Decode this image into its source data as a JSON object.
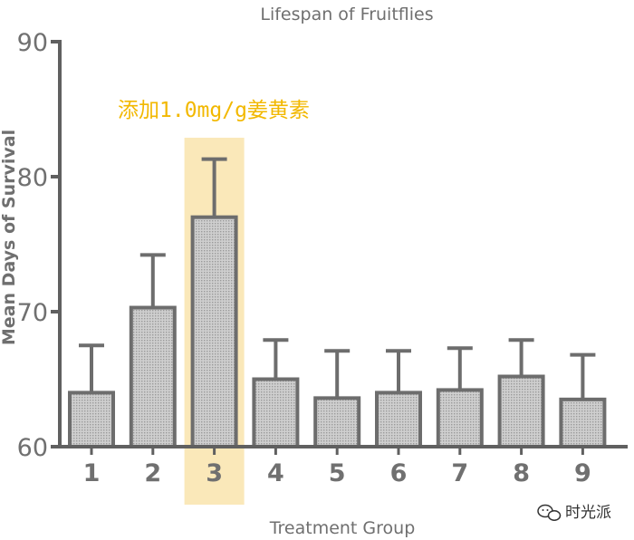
{
  "chart_data": {
    "type": "bar",
    "title": "Lifespan of Fruitflies",
    "xlabel": "Treatment Group",
    "ylabel": "Mean Days of Survival",
    "categories": [
      "1",
      "2",
      "3",
      "4",
      "5",
      "6",
      "7",
      "8",
      "9"
    ],
    "values": [
      64,
      70.3,
      77,
      65,
      63.6,
      64,
      64.2,
      65.2,
      63.5
    ],
    "error_upper": [
      67.5,
      74.2,
      81.3,
      67.9,
      67.1,
      67.1,
      67.3,
      67.9,
      66.8
    ],
    "ylim": [
      60,
      90
    ],
    "yticks": [
      60,
      70,
      80,
      90
    ],
    "grid": false,
    "highlight_index": 2,
    "annotation": "添加1.0mg/g姜黄素"
  },
  "watermark": {
    "icon": "wechat-icon",
    "text": "时光派"
  },
  "colors": {
    "bar_fill": "#c4c4c4",
    "bar_edge": "#6d6d6d",
    "axis": "#606060",
    "highlight": "#f6d98b",
    "annotation": "#f2b800"
  }
}
